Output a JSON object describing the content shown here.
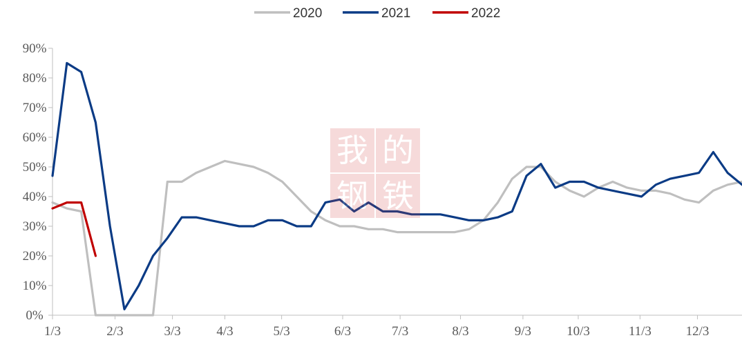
{
  "chart_data": {
    "type": "line",
    "title": "",
    "xlabel": "",
    "ylabel": "",
    "ylim": [
      0,
      90
    ],
    "y_ticks": [
      "0%",
      "10%",
      "20%",
      "30%",
      "40%",
      "50%",
      "60%",
      "70%",
      "80%",
      "90%"
    ],
    "y_tick_values": [
      0,
      10,
      20,
      30,
      40,
      50,
      60,
      70,
      80,
      90
    ],
    "x_tick_labels": [
      "1/3",
      "2/3",
      "3/3",
      "4/3",
      "5/3",
      "6/3",
      "7/3",
      "8/3",
      "9/3",
      "10/3",
      "11/3",
      "12/3"
    ],
    "x_tick_weeks": [
      0,
      4.35,
      8.35,
      12.0,
      15.95,
      20.2,
      24.2,
      28.4,
      32.75,
      36.6,
      40.9,
      44.9
    ],
    "x_max_week": 48,
    "legend_position": "top-center",
    "grid": false,
    "series": [
      {
        "name": "2020",
        "color": "#bfbfbf",
        "x": [
          0,
          1,
          2,
          3,
          4,
          5,
          6,
          7,
          8,
          9,
          10,
          11,
          12,
          13,
          14,
          15,
          16,
          17,
          18,
          19,
          20,
          21,
          22,
          23,
          24,
          25,
          26,
          27,
          28,
          29,
          30,
          31,
          32,
          33,
          34,
          35,
          36,
          37,
          38,
          39,
          40,
          41,
          42,
          43,
          44,
          45,
          46,
          47,
          48
        ],
        "values": [
          38,
          36,
          35,
          0,
          0,
          0,
          0,
          0,
          45,
          45,
          48,
          50,
          52,
          51,
          50,
          48,
          45,
          40,
          35,
          32,
          30,
          30,
          29,
          29,
          28,
          28,
          28,
          28,
          28,
          29,
          32,
          38,
          46,
          50,
          50,
          45,
          42,
          40,
          43,
          45,
          43,
          42,
          42,
          41,
          39,
          38,
          42,
          44,
          45
        ]
      },
      {
        "name": "2021",
        "color": "#0b3b85",
        "x": [
          0,
          1,
          2,
          3,
          4,
          5,
          6,
          7,
          8,
          9,
          10,
          11,
          12,
          13,
          14,
          15,
          16,
          17,
          18,
          19,
          20,
          21,
          22,
          23,
          24,
          25,
          26,
          27,
          28,
          29,
          30,
          31,
          32,
          33,
          34,
          35,
          36,
          37,
          38,
          39,
          40,
          41,
          42,
          43,
          44,
          45,
          46,
          47,
          48
        ],
        "values": [
          47,
          85,
          82,
          65,
          30,
          2,
          10,
          20,
          26,
          33,
          33,
          32,
          31,
          30,
          30,
          32,
          32,
          30,
          30,
          38,
          39,
          35,
          38,
          35,
          35,
          34,
          34,
          34,
          33,
          32,
          32,
          33,
          35,
          47,
          51,
          43,
          45,
          45,
          43,
          42,
          41,
          40,
          44,
          46,
          47,
          48,
          55,
          48,
          44
        ]
      },
      {
        "name": "2022",
        "color": "#c00000",
        "x": [
          0,
          1,
          2,
          3
        ],
        "values": [
          36,
          38,
          38,
          20
        ]
      }
    ]
  },
  "watermark": {
    "chars": [
      "我",
      "的",
      "钢",
      "铁"
    ]
  }
}
